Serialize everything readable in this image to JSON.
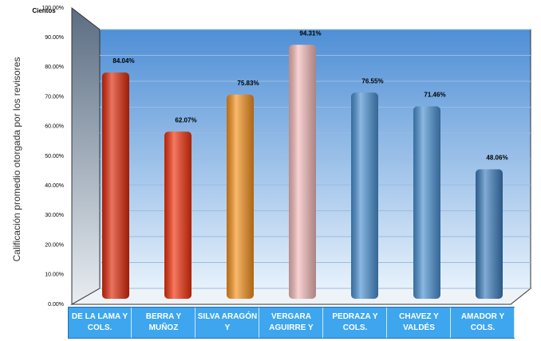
{
  "chart_data": {
    "type": "bar",
    "y_axis_label": "Calificación promedio otorgada por los revisores",
    "unit_label": "Cientos",
    "categories": [
      "DE LA LAMA Y COLS.",
      "BERRA Y MUÑOZ",
      "SILVA ARAGÓN Y",
      "VERGARA AGUIRRE Y",
      "PEDRAZA Y COLS.",
      "CHAVEZ Y VALDÉS",
      "AMADOR Y COLS."
    ],
    "values": [
      84.04,
      62.07,
      75.83,
      94.31,
      76.55,
      71.46,
      48.06
    ],
    "value_labels": [
      "84.04%",
      "62.07%",
      "75.83%",
      "94.31%",
      "76.55%",
      "71.46%",
      "48.06%"
    ],
    "colors": [
      "#e02a0a",
      "#f2310c",
      "#f7931e",
      "#f6bcbc",
      "#4b92d4",
      "#4b92d4",
      "#3d7fbf"
    ],
    "ylim": [
      0,
      100
    ],
    "yticks": [
      {
        "value": 0,
        "label": "0.00%"
      },
      {
        "value": 10,
        "label": "10.00%"
      },
      {
        "value": 20,
        "label": "20.00%"
      },
      {
        "value": 30,
        "label": "30.00%"
      },
      {
        "value": 40,
        "label": "40.00%"
      },
      {
        "value": 50,
        "label": "50.00%"
      },
      {
        "value": 60,
        "label": "60.00%"
      },
      {
        "value": 70,
        "label": "70.00%"
      },
      {
        "value": 80,
        "label": "80.00%"
      },
      {
        "value": 90,
        "label": "90.00%"
      },
      {
        "value": 100,
        "label": "100.00%"
      }
    ],
    "grid": true
  }
}
